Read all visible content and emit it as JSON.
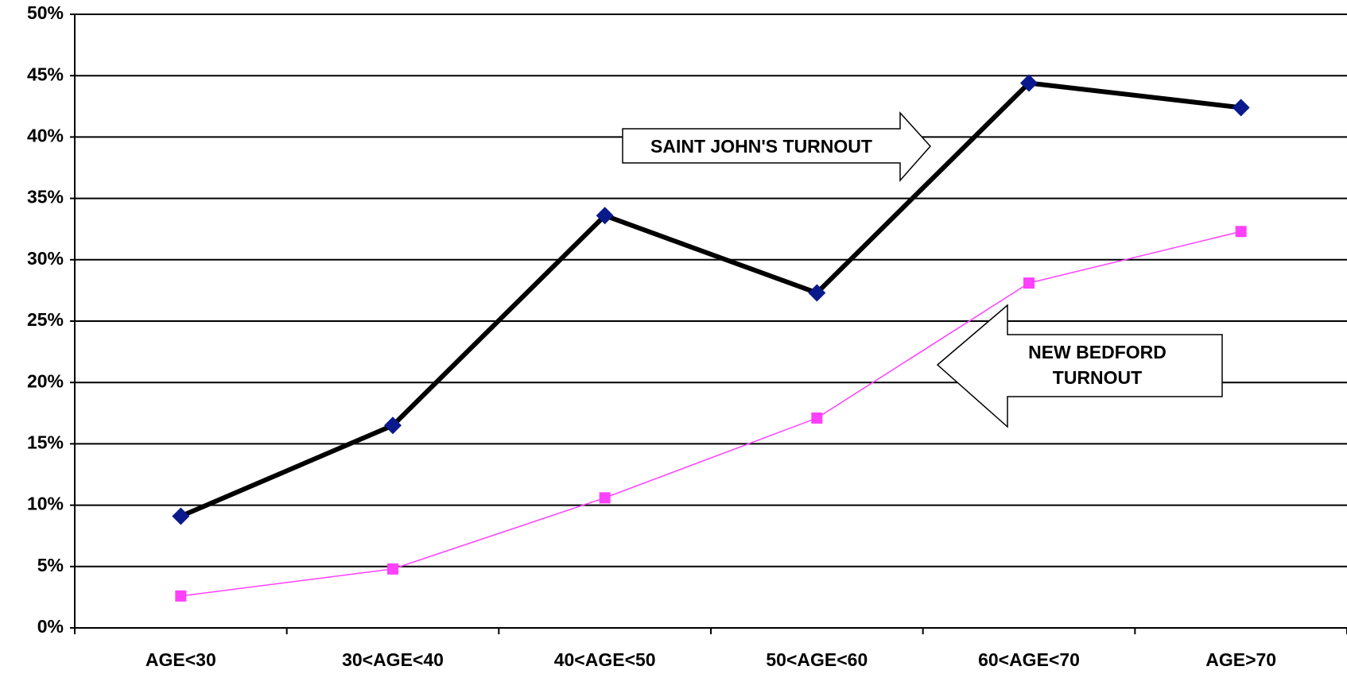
{
  "chart_data": {
    "type": "line",
    "categories": [
      "AGE<30",
      "30<AGE<40",
      "40<AGE<50",
      "50<AGE<60",
      "60<AGE<70",
      "AGE>70"
    ],
    "series": [
      {
        "name": "SAINT JOHN'S TURNOUT",
        "color": "#000000",
        "marker_color": "#0a1a8c",
        "marker": "diamond",
        "values": [
          9.1,
          16.5,
          33.6,
          27.3,
          44.4,
          42.4
        ]
      },
      {
        "name": "NEW BEDFORD TURNOUT",
        "color": "#ff40ff",
        "marker_color": "#ff40ff",
        "marker": "square",
        "values": [
          2.6,
          4.8,
          10.6,
          17.1,
          28.1,
          32.3
        ]
      }
    ],
    "ylim": [
      0,
      50
    ],
    "yticks": [
      {
        "value": 0,
        "label": "0%"
      },
      {
        "value": 5,
        "label": "5%"
      },
      {
        "value": 10,
        "label": "10%"
      },
      {
        "value": 15,
        "label": "15%"
      },
      {
        "value": 20,
        "label": "20%"
      },
      {
        "value": 25,
        "label": "25%"
      },
      {
        "value": 30,
        "label": "30%"
      },
      {
        "value": 35,
        "label": "35%"
      },
      {
        "value": 40,
        "label": "40%"
      },
      {
        "value": 45,
        "label": "45%"
      },
      {
        "value": 50,
        "label": "50%"
      }
    ],
    "grid": true
  }
}
